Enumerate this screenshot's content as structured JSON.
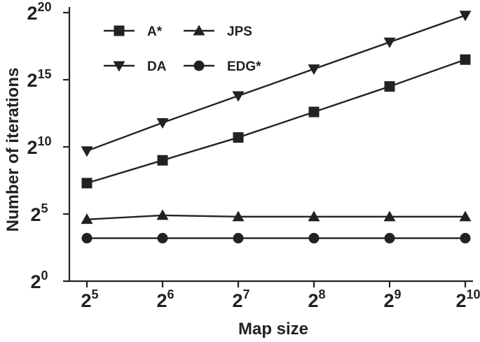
{
  "chart_data": {
    "type": "line",
    "xlabel": "Map size",
    "ylabel": "Number of iterations",
    "x_scale": "log2",
    "y_scale": "log2",
    "x": [
      5,
      6,
      7,
      8,
      9,
      10
    ],
    "x_tick_labels": [
      {
        "base": "2",
        "exp": "5"
      },
      {
        "base": "2",
        "exp": "6"
      },
      {
        "base": "2",
        "exp": "7"
      },
      {
        "base": "2",
        "exp": "8"
      },
      {
        "base": "2",
        "exp": "9"
      },
      {
        "base": "2",
        "exp": "10"
      }
    ],
    "y_ticks": [
      0,
      5,
      10,
      15,
      20
    ],
    "y_tick_labels": [
      {
        "base": "2",
        "exp": "0"
      },
      {
        "base": "2",
        "exp": "5"
      },
      {
        "base": "2",
        "exp": "10"
      },
      {
        "base": "2",
        "exp": "15"
      },
      {
        "base": "2",
        "exp": "20"
      }
    ],
    "ylim": [
      0,
      20
    ],
    "grid": false,
    "legend_position": "top-left",
    "series": [
      {
        "name": "A*",
        "marker": "square",
        "values": [
          7.3,
          9.0,
          10.7,
          12.6,
          14.5,
          16.5
        ]
      },
      {
        "name": "JPS",
        "marker": "triangle-up",
        "values": [
          4.6,
          4.9,
          4.8,
          4.8,
          4.8,
          4.8
        ]
      },
      {
        "name": "DA",
        "marker": "triangle-down",
        "values": [
          9.7,
          11.8,
          13.8,
          15.8,
          17.8,
          19.8
        ]
      },
      {
        "name": "EDG*",
        "marker": "circle",
        "values": [
          3.2,
          3.2,
          3.2,
          3.2,
          3.2,
          3.2
        ]
      }
    ]
  }
}
